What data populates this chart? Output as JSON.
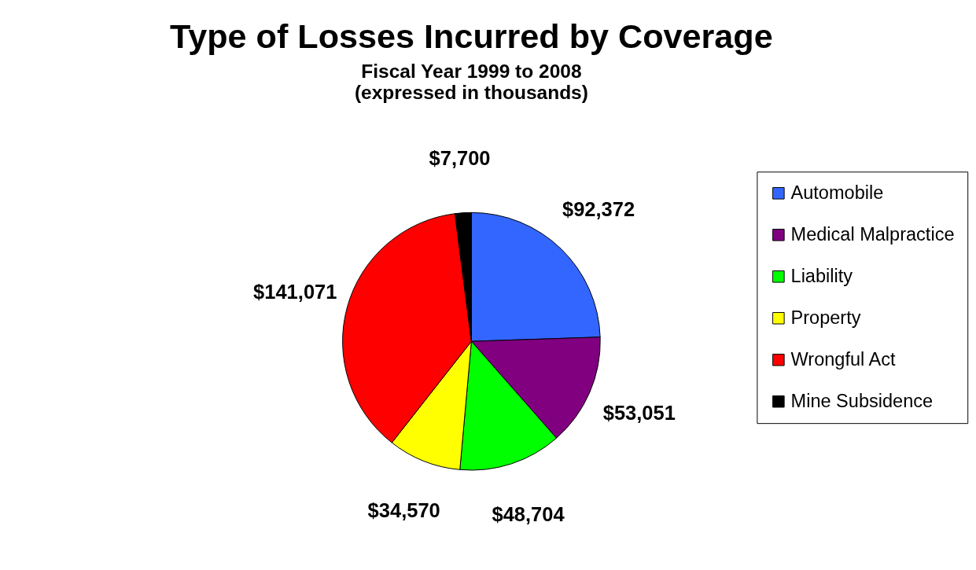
{
  "chart_data": {
    "type": "pie",
    "title": "Type of Losses Incurred by Coverage",
    "subtitle": "Fiscal Year 1999 to 2008\n(expressed in thousands)",
    "categories": [
      "Automobile",
      "Medical Malpractice",
      "Liability",
      "Property",
      "Wrongful Act",
      "Mine Subsidence"
    ],
    "values": [
      92372,
      53051,
      48704,
      34570,
      141071,
      7700
    ],
    "colors": [
      "#3366ff",
      "#800080",
      "#00ff00",
      "#ffff00",
      "#ff0000",
      "#000000"
    ],
    "value_labels": [
      "$92,372",
      "$53,051",
      "$48,704",
      "$34,570",
      "$141,071",
      "$7,700"
    ],
    "legend": "right"
  }
}
